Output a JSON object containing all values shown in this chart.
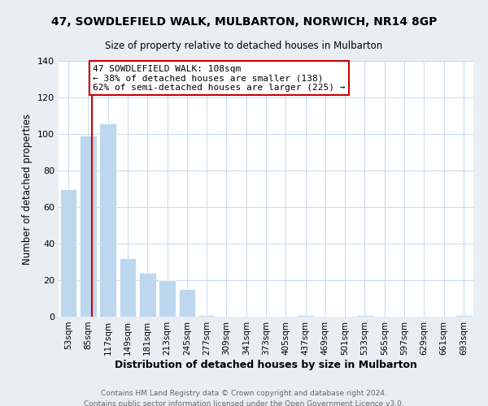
{
  "title": "47, SOWDLEFIELD WALK, MULBARTON, NORWICH, NR14 8GP",
  "subtitle": "Size of property relative to detached houses in Mulbarton",
  "xlabel": "Distribution of detached houses by size in Mulbarton",
  "ylabel": "Number of detached properties",
  "bar_labels": [
    "53sqm",
    "85sqm",
    "117sqm",
    "149sqm",
    "181sqm",
    "213sqm",
    "245sqm",
    "277sqm",
    "309sqm",
    "341sqm",
    "373sqm",
    "405sqm",
    "437sqm",
    "469sqm",
    "501sqm",
    "533sqm",
    "565sqm",
    "597sqm",
    "629sqm",
    "661sqm",
    "693sqm"
  ],
  "bar_values": [
    70,
    99,
    106,
    32,
    24,
    20,
    15,
    1,
    0,
    0,
    0,
    0,
    1,
    0,
    0,
    1,
    0,
    0,
    0,
    0,
    1
  ],
  "bar_color": "#bdd7ee",
  "annotation_title": "47 SOWDLEFIELD WALK: 108sqm",
  "annotation_line1": "← 38% of detached houses are smaller (138)",
  "annotation_line2": "62% of semi-detached houses are larger (225) →",
  "annotation_box_color": "#ffffff",
  "annotation_box_edge": "#cc0000",
  "property_line_color": "#cc0000",
  "ylim": [
    0,
    140
  ],
  "yticks": [
    0,
    20,
    40,
    60,
    80,
    100,
    120,
    140
  ],
  "footer1": "Contains HM Land Registry data © Crown copyright and database right 2024.",
  "footer2": "Contains public sector information licensed under the Open Government Licence v3.0.",
  "bg_color": "#e8eef4",
  "plot_bg_color": "#ffffff",
  "grid_color": "#c8d8e8"
}
